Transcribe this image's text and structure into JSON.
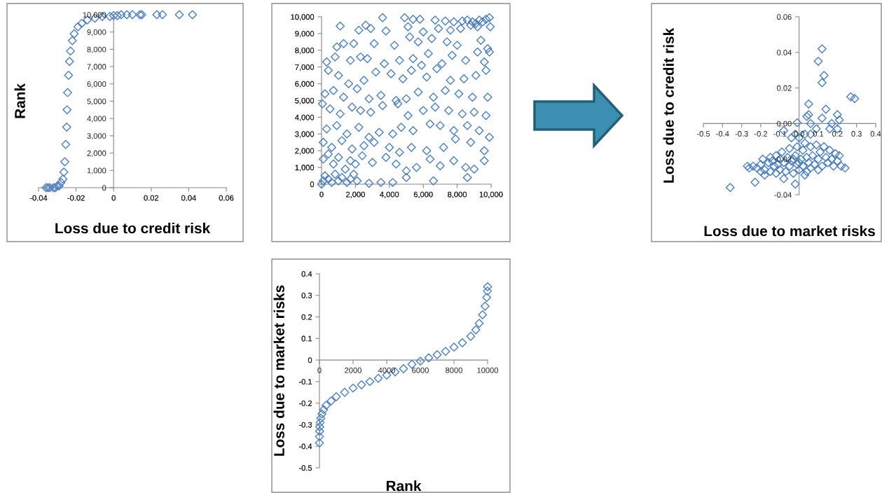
{
  "chart_data": [
    {
      "type": "scatter",
      "xlabel": "Loss due to credit risk",
      "ylabel": "Rank",
      "marker": "diamond",
      "grid": false,
      "xlim": [
        -0.04,
        0.06
      ],
      "xticks": [
        -0.04,
        -0.02,
        0,
        0.02,
        0.04,
        0.06
      ],
      "ylim": [
        0,
        10000
      ],
      "yticks": [
        0,
        {
          "value": 1000,
          "label": "1,000"
        },
        {
          "value": 2000,
          "label": "2,000"
        },
        {
          "value": 3000,
          "label": "3,000"
        },
        {
          "value": 4000,
          "label": "4,000"
        },
        {
          "value": 5000,
          "label": "5,000"
        },
        {
          "value": 6000,
          "label": "6,000"
        },
        {
          "value": 7000,
          "label": "7,000"
        },
        {
          "value": 8000,
          "label": "8,000"
        },
        {
          "value": 9000,
          "label": "9,000"
        },
        {
          "value": 10000,
          "label": "10,000"
        }
      ],
      "series": [
        {
          "color": "#4a7ebb",
          "x": [
            -0.036,
            -0.035,
            -0.034,
            -0.032,
            -0.031,
            -0.03,
            -0.029,
            -0.028,
            -0.027,
            -0.0265,
            -0.026,
            -0.0255,
            -0.025,
            -0.0248,
            -0.0245,
            -0.024,
            -0.0235,
            -0.023,
            -0.022,
            -0.021,
            -0.019,
            -0.017,
            -0.014,
            -0.01,
            -0.006,
            -0.002,
            0.0,
            0.002,
            0.004,
            0.007,
            0.01,
            0.014,
            0.015,
            0.023,
            0.026,
            0.035,
            0.042
          ],
          "values": [
            0,
            0,
            0,
            0,
            0,
            100,
            100,
            300,
            500,
            900,
            1500,
            2500,
            3500,
            4500,
            5500,
            6500,
            7300,
            7900,
            8500,
            8900,
            9300,
            9500,
            9700,
            9800,
            9900,
            9900,
            9950,
            9950,
            10000,
            10000,
            10000,
            10000,
            10000,
            10000,
            10000,
            10000,
            10000
          ]
        }
      ]
    },
    {
      "type": "scatter",
      "marker": "diamond",
      "grid": false,
      "xlim": [
        0,
        10000
      ],
      "xticks": [
        0,
        {
          "value": 2000,
          "label": "2,000"
        },
        {
          "value": 4000,
          "label": "4,000"
        },
        {
          "value": 6000,
          "label": "6,000"
        },
        {
          "value": 8000,
          "label": "8,000"
        },
        {
          "value": 10000,
          "label": "10,000"
        }
      ],
      "ylim": [
        0,
        10000
      ],
      "yticks": [
        0,
        {
          "value": 1000,
          "label": "1,000"
        },
        {
          "value": 2000,
          "label": "2,000"
        },
        {
          "value": 3000,
          "label": "3,000"
        },
        {
          "value": 4000,
          "label": "4,000"
        },
        {
          "value": 5000,
          "label": "5,000"
        },
        {
          "value": 6000,
          "label": "6,000"
        },
        {
          "value": 7000,
          "label": "7,000"
        },
        {
          "value": 8000,
          "label": "8,000"
        },
        {
          "value": 9000,
          "label": "9,000"
        },
        {
          "value": 10000,
          "label": "10,000"
        }
      ],
      "series": [
        {
          "color": "#4a7ebb",
          "x": [
            1100,
            3600,
            4900,
            5400,
            5800,
            6700,
            7300,
            7800,
            8300,
            8600,
            8900,
            9100,
            9300,
            9500,
            9700,
            9900,
            9950,
            9200,
            8800,
            2200,
            2600,
            2900,
            3800,
            5100,
            6000,
            6900,
            7600,
            8200,
            900,
            1300,
            1900,
            3100,
            4300,
            5200,
            5700,
            6500,
            7400,
            8000,
            9400,
            9800,
            9900,
            300,
            800,
            1700,
            2300,
            2700,
            3700,
            4600,
            5400,
            5900,
            6300,
            7100,
            7700,
            8500,
            9200,
            9600,
            400,
            1000,
            1600,
            2500,
            3200,
            4100,
            4800,
            5300,
            6200,
            6800,
            7600,
            8400,
            9100,
            9700,
            200,
            700,
            1300,
            2100,
            2800,
            3500,
            4400,
            5000,
            5700,
            6600,
            7300,
            8100,
            8900,
            9800,
            50,
            500,
            1100,
            1800,
            2300,
            2900,
            3600,
            4500,
            5100,
            6000,
            6700,
            7500,
            8300,
            9000,
            9700,
            300,
            900,
            1500,
            2200,
            2800,
            3400,
            4200,
            4700,
            5400,
            6400,
            7000,
            7800,
            8600,
            9300,
            100,
            600,
            1200,
            1800,
            2500,
            3100,
            4000,
            4600,
            5300,
            6200,
            7200,
            7900,
            8800,
            9600,
            9900,
            100,
            400,
            700,
            1000,
            1400,
            1700,
            2000,
            2400,
            3000,
            3800,
            4400,
            5000,
            5600,
            6400,
            7000,
            7800,
            8500,
            9000,
            9600,
            0,
            100,
            200,
            400,
            600,
            800,
            1000,
            1200,
            1500,
            1700,
            1900,
            2100,
            2800,
            3500,
            4200,
            6600,
            8600,
            5000
          ],
          "values": [
            9450,
            9950,
            9950,
            9850,
            9850,
            9800,
            9750,
            9700,
            9750,
            9800,
            9700,
            9600,
            9800,
            9700,
            9850,
            9950,
            9400,
            9400,
            9500,
            9200,
            9500,
            9300,
            9150,
            9400,
            9100,
            9300,
            9200,
            9300,
            8200,
            8400,
            8400,
            8400,
            8300,
            8800,
            8500,
            8700,
            8500,
            8300,
            8600,
            8100,
            7900,
            7300,
            7600,
            7400,
            7600,
            7500,
            7200,
            7400,
            7500,
            7100,
            7800,
            7200,
            7700,
            7400,
            7900,
            7300,
            6800,
            6500,
            6000,
            6200,
            6700,
            6600,
            6300,
            6800,
            6400,
            6900,
            6200,
            6300,
            6500,
            6800,
            5400,
            5600,
            5200,
            5700,
            5100,
            5300,
            5000,
            5100,
            5500,
            5200,
            5600,
            5400,
            5200,
            5200,
            4800,
            4500,
            4200,
            4600,
            4400,
            4300,
            4700,
            4800,
            4100,
            4400,
            4600,
            4400,
            4200,
            4300,
            4100,
            3300,
            3500,
            3000,
            3400,
            2800,
            3100,
            3000,
            3400,
            3200,
            3600,
            3500,
            3200,
            3500,
            3200,
            2500,
            2200,
            2600,
            2100,
            2300,
            2500,
            2200,
            1900,
            2200,
            2000,
            2200,
            2700,
            2500,
            2000,
            2800,
            1500,
            1800,
            1200,
            1600,
            900,
            1400,
            1200,
            1700,
            1300,
            1600,
            1200,
            800,
            1000,
            1500,
            1100,
            1400,
            1000,
            900,
            1400,
            0,
            200,
            500,
            300,
            100,
            600,
            200,
            400,
            100,
            300,
            600,
            200,
            50,
            100,
            100,
            200,
            400,
            400
          ]
        }
      ]
    },
    {
      "type": "scatter",
      "xlabel": "Loss due to market risks",
      "ylabel": "Loss due to credit risk",
      "marker": "diamond",
      "grid": false,
      "xlim": [
        -0.5,
        0.4
      ],
      "xticks": [
        -0.5,
        -0.4,
        -0.3,
        -0.2,
        -0.1,
        {
          "value": 0,
          "label": "0.0"
        },
        0.1,
        0.2,
        0.3,
        0.4
      ],
      "ylim": [
        -0.04,
        0.06
      ],
      "yticks": [
        -0.04,
        -0.02,
        {
          "value": 0,
          "label": "0.00"
        },
        0.02,
        0.04,
        0.06
      ],
      "series": [
        {
          "color": "#4a7ebb",
          "x": [
            0.12,
            0.1,
            0.13,
            0.12,
            0.27,
            0.29,
            0.05,
            0.14,
            0.05,
            0.04,
            0.12,
            0.2,
            0.21,
            -0.01,
            0.06,
            0.17,
            0.09,
            0.16,
            -0.08,
            0.2,
            -0.02,
            0.03,
            0.0,
            -0.04,
            0.06,
            -0.27,
            -0.26,
            -0.24,
            -0.22,
            -0.2,
            -0.19,
            -0.18,
            -0.16,
            -0.15,
            -0.14,
            -0.13,
            -0.12,
            -0.12,
            -0.11,
            -0.1,
            -0.1,
            -0.09,
            -0.08,
            -0.07,
            -0.06,
            -0.05,
            -0.05,
            -0.04,
            -0.03,
            -0.02,
            -0.01,
            -0.01,
            0.0,
            0.01,
            0.02,
            0.02,
            0.03,
            0.04,
            0.04,
            0.05,
            0.06,
            0.07,
            0.08,
            0.09,
            0.1,
            0.11,
            0.12,
            0.13,
            0.14,
            0.15,
            0.16,
            0.17,
            0.18,
            0.19,
            0.2,
            0.21,
            0.22,
            0.24,
            -0.36,
            -0.23,
            -0.02,
            -0.18,
            -0.08,
            0.03,
            0.0,
            -0.03,
            0.06,
            0.1,
            -0.15,
            -0.2
          ],
          "values": [
            0.042,
            0.035,
            0.027,
            0.023,
            0.015,
            0.014,
            0.011,
            0.008,
            0.005,
            0.004,
            0.003,
            0.005,
            0.002,
            0.0005,
            0.0,
            0.0,
            -0.003,
            -0.003,
            -0.004,
            -0.003,
            -0.006,
            -0.006,
            -0.008,
            -0.008,
            -0.006,
            -0.024,
            -0.025,
            -0.024,
            -0.025,
            -0.023,
            -0.02,
            -0.026,
            -0.022,
            -0.027,
            -0.021,
            -0.024,
            -0.018,
            -0.028,
            -0.023,
            -0.02,
            -0.026,
            -0.016,
            -0.022,
            -0.027,
            -0.019,
            -0.024,
            -0.014,
            -0.021,
            -0.028,
            -0.018,
            -0.023,
            -0.013,
            -0.026,
            -0.02,
            -0.015,
            -0.024,
            -0.011,
            -0.019,
            -0.027,
            -0.022,
            -0.013,
            -0.018,
            -0.023,
            -0.012,
            -0.02,
            -0.016,
            -0.024,
            -0.013,
            -0.019,
            -0.022,
            -0.015,
            -0.02,
            -0.024,
            -0.017,
            -0.021,
            -0.018,
            -0.024,
            -0.025,
            -0.036,
            -0.033,
            -0.034,
            -0.029,
            -0.031,
            -0.029,
            -0.022,
            -0.02,
            -0.025,
            -0.026,
            -0.019,
            -0.027
          ]
        }
      ]
    },
    {
      "type": "scatter",
      "xlabel": "Rank",
      "ylabel": "Loss due to market risks",
      "marker": "diamond",
      "grid": false,
      "xlim": [
        0,
        10000
      ],
      "xticks": [
        0,
        2000,
        4000,
        6000,
        8000,
        10000
      ],
      "ylim": [
        -0.5,
        0.4
      ],
      "yticks": [
        -0.5,
        -0.4,
        -0.3,
        -0.2,
        -0.1,
        0,
        0.1,
        0.2,
        0.3,
        0.4
      ],
      "series": [
        {
          "color": "#4a7ebb",
          "x": [
            0,
            0,
            10,
            20,
            40,
            80,
            150,
            250,
            400,
            700,
            1000,
            1500,
            2000,
            2500,
            3000,
            3500,
            4000,
            4500,
            5000,
            5500,
            6000,
            6500,
            7000,
            7500,
            8000,
            8500,
            9000,
            9300,
            9500,
            9700,
            9850,
            9950,
            9990,
            10000
          ],
          "values": [
            -0.385,
            -0.355,
            -0.33,
            -0.31,
            -0.29,
            -0.27,
            -0.25,
            -0.23,
            -0.21,
            -0.19,
            -0.17,
            -0.15,
            -0.13,
            -0.115,
            -0.1,
            -0.085,
            -0.07,
            -0.055,
            -0.04,
            -0.02,
            -0.005,
            0.01,
            0.025,
            0.04,
            0.06,
            0.08,
            0.11,
            0.14,
            0.17,
            0.21,
            0.25,
            0.29,
            0.32,
            0.34
          ]
        }
      ]
    }
  ]
}
